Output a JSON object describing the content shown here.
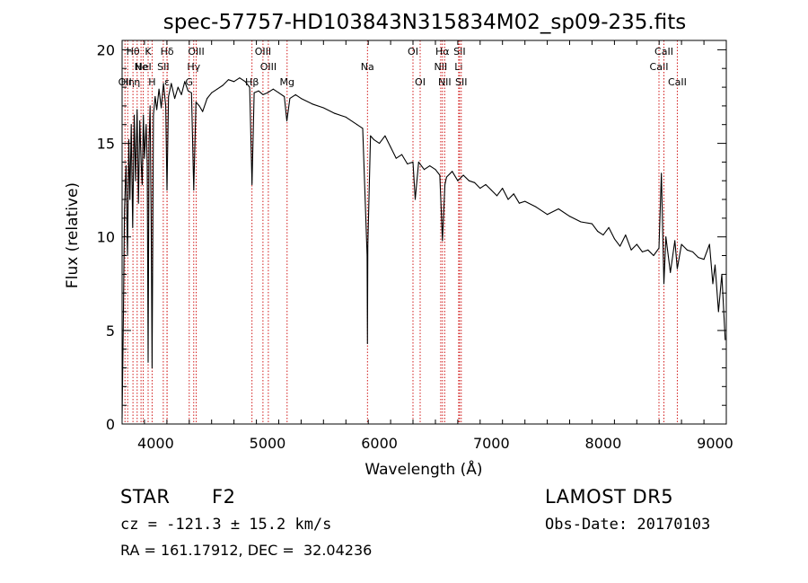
{
  "chart_data": {
    "type": "line",
    "title": "spec-57757-HD103843N315834M02_sp09-235.fits",
    "xlabel": "Wavelength (Å)",
    "ylabel": "Flux (relative)",
    "xlim": [
      3700,
      9100
    ],
    "ylim": [
      0,
      20.5
    ],
    "xticks": [
      4000,
      5000,
      6000,
      7000,
      8000,
      9000
    ],
    "yticks": [
      0,
      5,
      10,
      15,
      20
    ],
    "grid": false,
    "series": [
      {
        "color": "#000000",
        "x": [
          3700,
          3712,
          3722,
          3735,
          3748,
          3760,
          3770,
          3782,
          3795,
          3808,
          3820,
          3834,
          3846,
          3858,
          3870,
          3880,
          3890,
          3900,
          3915,
          3925,
          3933,
          3941,
          3950,
          3960,
          3968,
          3980,
          3995,
          4010,
          4030,
          4050,
          4070,
          4090,
          4101,
          4115,
          4140,
          4170,
          4200,
          4230,
          4260,
          4290,
          4320,
          4340,
          4360,
          4390,
          4420,
          4460,
          4500,
          4550,
          4600,
          4650,
          4700,
          4750,
          4800,
          4840,
          4861,
          4880,
          4920,
          4960,
          5000,
          5050,
          5100,
          5150,
          5172,
          5200,
          5250,
          5300,
          5400,
          5500,
          5600,
          5700,
          5800,
          5850,
          5890,
          5893,
          5896,
          5920,
          5950,
          6000,
          6050,
          6100,
          6150,
          6200,
          6250,
          6300,
          6320,
          6350,
          6400,
          6450,
          6500,
          6540,
          6563,
          6585,
          6600,
          6650,
          6700,
          6750,
          6800,
          6850,
          6900,
          6950,
          7000,
          7050,
          7100,
          7150,
          7200,
          7250,
          7300,
          7400,
          7500,
          7600,
          7700,
          7800,
          7900,
          7950,
          8000,
          8050,
          8100,
          8150,
          8200,
          8250,
          8300,
          8350,
          8400,
          8450,
          8498,
          8520,
          8542,
          8560,
          8600,
          8640,
          8662,
          8700,
          8750,
          8800,
          8850,
          8900,
          8950,
          8980,
          9000,
          9030,
          9060,
          9090
        ],
        "y": [
          0.3,
          6.0,
          11.5,
          13.8,
          9.0,
          15.2,
          12.0,
          16.0,
          10.5,
          16.5,
          13.0,
          16.8,
          11.8,
          16.2,
          14.0,
          12.8,
          16.5,
          14.2,
          16.0,
          13.8,
          3.3,
          15.0,
          17.0,
          11.0,
          3.0,
          16.5,
          17.5,
          16.8,
          17.9,
          16.9,
          18.2,
          17.0,
          12.5,
          17.5,
          18.2,
          17.4,
          18.0,
          17.6,
          18.3,
          17.8,
          17.7,
          12.5,
          17.2,
          17.0,
          16.7,
          17.4,
          17.7,
          17.9,
          18.1,
          18.4,
          18.3,
          18.5,
          18.3,
          18.0,
          12.8,
          17.7,
          17.8,
          17.6,
          17.7,
          17.9,
          17.7,
          17.5,
          16.2,
          17.4,
          17.6,
          17.4,
          17.1,
          16.9,
          16.6,
          16.4,
          16.0,
          15.8,
          9.0,
          4.3,
          9.5,
          15.4,
          15.2,
          15.0,
          15.4,
          14.8,
          14.2,
          14.4,
          13.9,
          14.0,
          12.0,
          14.0,
          13.6,
          13.8,
          13.6,
          13.3,
          9.8,
          12.8,
          13.2,
          13.5,
          13.0,
          13.3,
          13.0,
          12.9,
          12.6,
          12.8,
          12.5,
          12.2,
          12.6,
          12.0,
          12.3,
          11.8,
          11.9,
          11.6,
          11.2,
          11.5,
          11.1,
          10.8,
          10.7,
          10.3,
          10.1,
          10.5,
          9.9,
          9.5,
          10.1,
          9.3,
          9.6,
          9.2,
          9.3,
          9.0,
          9.4,
          13.4,
          7.5,
          10.0,
          8.1,
          9.8,
          8.3,
          9.6,
          9.3,
          9.2,
          8.9,
          8.8,
          9.6,
          7.5,
          8.5,
          6.0,
          8.0,
          4.5
        ]
      }
    ],
    "lines": [
      {
        "wave": 3726,
        "label": "OII",
        "row": 3
      },
      {
        "wave": 3750,
        "label": "Hη",
        "row": 3
      },
      {
        "wave": 3797,
        "label": "Hθ",
        "row": 1
      },
      {
        "wave": 3835,
        "label": "η",
        "row": 3
      },
      {
        "wave": 3869,
        "label": "Ne",
        "row": 2
      },
      {
        "wave": 3889,
        "label": "HeI",
        "row": 2
      },
      {
        "wave": 3933,
        "label": "K",
        "row": 1
      },
      {
        "wave": 3968,
        "label": "H",
        "row": 3
      },
      {
        "wave": 4068,
        "label": "SII",
        "row": 2
      },
      {
        "wave": 4102,
        "label": "Hδ",
        "row": 1
      },
      {
        "wave": 4102,
        "label": "ε",
        "row": 3
      },
      {
        "wave": 4340,
        "label": "Hγ",
        "row": 2
      },
      {
        "wave": 4300,
        "label": "G",
        "row": 3
      },
      {
        "wave": 4363,
        "label": "OIII",
        "row": 1
      },
      {
        "wave": 4861,
        "label": "Hβ",
        "row": 3
      },
      {
        "wave": 4959,
        "label": "OIII",
        "row": 1
      },
      {
        "wave": 5007,
        "label": "OIII",
        "row": 2
      },
      {
        "wave": 5175,
        "label": "Mg",
        "row": 3
      },
      {
        "wave": 5893,
        "label": "Na",
        "row": 2
      },
      {
        "wave": 6300,
        "label": "OI",
        "row": 1
      },
      {
        "wave": 6364,
        "label": "OI",
        "row": 3
      },
      {
        "wave": 6548,
        "label": "NII",
        "row": 2
      },
      {
        "wave": 6563,
        "label": "Hα",
        "row": 1
      },
      {
        "wave": 6583,
        "label": "NII",
        "row": 3
      },
      {
        "wave": 6708,
        "label": "Li",
        "row": 2
      },
      {
        "wave": 6716,
        "label": "SII",
        "row": 1
      },
      {
        "wave": 6731,
        "label": "SII",
        "row": 3
      },
      {
        "wave": 8498,
        "label": "CaII",
        "row": 2
      },
      {
        "wave": 8542,
        "label": "CaII",
        "row": 1
      },
      {
        "wave": 8662,
        "label": "CaII",
        "row": 3
      }
    ]
  },
  "info": {
    "object_type": "STAR",
    "subclass": "F2",
    "survey": "LAMOST DR5",
    "redshift": "cz = -121.3 ± 15.2 km/s",
    "obs_date": "Obs-Date: 20170103",
    "coords": "RA = 161.17912, DEC =  32.04236"
  }
}
